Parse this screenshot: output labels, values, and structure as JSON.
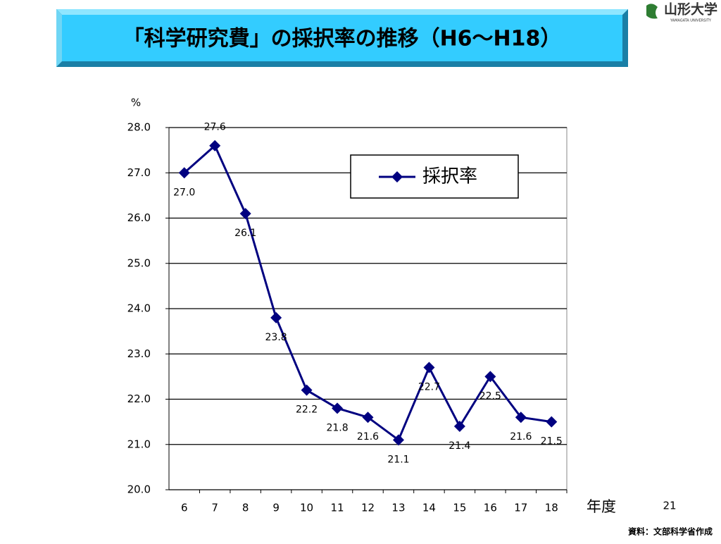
{
  "header": {
    "title": "「科学研究費」の採択率の推移（H6〜H18）",
    "logo": "山形大学",
    "logo_sub": "YAMAGATA UNIVERSITY"
  },
  "chart_data": {
    "type": "line",
    "y_unit": "%",
    "x_label": "年度",
    "categories": [
      "6",
      "7",
      "8",
      "9",
      "10",
      "11",
      "12",
      "13",
      "14",
      "15",
      "16",
      "17",
      "18"
    ],
    "series": [
      {
        "name": "採択率",
        "color": "#000080",
        "values": [
          27.0,
          27.6,
          26.1,
          23.8,
          22.2,
          21.8,
          21.6,
          21.1,
          22.7,
          21.4,
          22.5,
          21.6,
          21.5
        ],
        "value_labels": [
          "27.0",
          "27.6",
          "26.1",
          "23.8",
          "22.2",
          "21.8",
          "21.6",
          "21.1",
          "22.7",
          "21.4",
          "22.5",
          "21.6",
          "21.5"
        ]
      }
    ],
    "ylim": [
      20,
      28
    ],
    "yticks": [
      {
        "value": 20,
        "label": "20.0"
      },
      {
        "value": 21,
        "label": "21.0"
      },
      {
        "value": 22,
        "label": "22.0"
      },
      {
        "value": 23,
        "label": "23.0"
      },
      {
        "value": 24,
        "label": "24.0"
      },
      {
        "value": 25,
        "label": "25.0"
      },
      {
        "value": 26,
        "label": "26.0"
      },
      {
        "value": 27,
        "label": "27.0"
      },
      {
        "value": 28,
        "label": "28.0"
      }
    ],
    "grid": true,
    "legend": "upper right"
  },
  "footer": {
    "page": "21",
    "source": "資料：文部科学省作成"
  }
}
